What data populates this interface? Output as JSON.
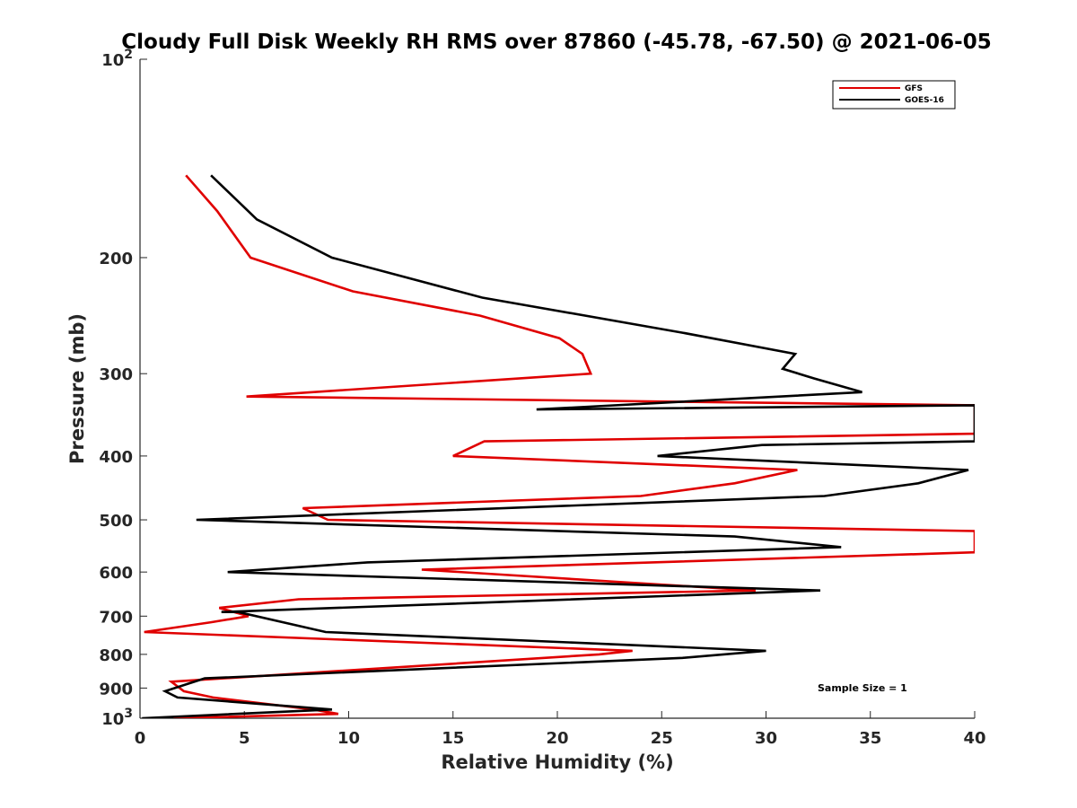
{
  "chart_data": {
    "type": "line",
    "title": "Cloudy Full Disk Weekly RH RMS over 87860 (-45.78, -67.50) @ 2021-06-05",
    "xlabel": "Relative Humidity (%)",
    "ylabel": "Pressure (mb)",
    "xlim": [
      0,
      40
    ],
    "ylim": [
      100,
      1000
    ],
    "y_scale": "log",
    "y_reversed": true,
    "x_ticks": [
      "0",
      "5",
      "10",
      "15",
      "20",
      "25",
      "30",
      "35",
      "40"
    ],
    "y_ticks": [
      {
        "value": 100,
        "base": "10",
        "exp": "2"
      },
      {
        "value": 200,
        "label": "200"
      },
      {
        "value": 300,
        "label": "300"
      },
      {
        "value": 400,
        "label": "400"
      },
      {
        "value": 500,
        "label": "500"
      },
      {
        "value": 600,
        "label": "600"
      },
      {
        "value": 700,
        "label": "700"
      },
      {
        "value": 800,
        "label": "800"
      },
      {
        "value": 900,
        "label": "900"
      },
      {
        "value": 1000,
        "base": "10",
        "exp": "3"
      }
    ],
    "grid": false,
    "legend_position": "top-right",
    "annotation": "Sample Size = 1",
    "series": [
      {
        "name": "GFS",
        "color": "#e00000",
        "points": [
          [
            2.2,
            150
          ],
          [
            3.7,
            170
          ],
          [
            5.3,
            200
          ],
          [
            10.2,
            225
          ],
          [
            16.3,
            245
          ],
          [
            20.1,
            265
          ],
          [
            21.2,
            280
          ],
          [
            21.6,
            300
          ],
          [
            5.1,
            325
          ],
          [
            40.0,
            335
          ],
          [
            40.0,
            370
          ],
          [
            16.5,
            380
          ],
          [
            15.0,
            400
          ],
          [
            31.5,
            420
          ],
          [
            28.5,
            440
          ],
          [
            24.0,
            460
          ],
          [
            7.8,
            480
          ],
          [
            9.0,
            500
          ],
          [
            40.0,
            520
          ],
          [
            40.0,
            560
          ],
          [
            13.5,
            595
          ],
          [
            29.5,
            640
          ],
          [
            7.6,
            660
          ],
          [
            3.8,
            680
          ],
          [
            5.2,
            700
          ],
          [
            3.4,
            715
          ],
          [
            0.2,
            740
          ],
          [
            23.6,
            790
          ],
          [
            22.0,
            800
          ],
          [
            1.5,
            880
          ],
          [
            2.1,
            910
          ],
          [
            3.5,
            930
          ],
          [
            8.3,
            970
          ],
          [
            9.5,
            985
          ],
          [
            1.6,
            1000
          ]
        ]
      },
      {
        "name": "GOES-16",
        "color": "#000000",
        "points": [
          [
            3.4,
            150
          ],
          [
            5.6,
            175
          ],
          [
            9.2,
            200
          ],
          [
            16.4,
            230
          ],
          [
            26.0,
            260
          ],
          [
            31.4,
            280
          ],
          [
            30.8,
            295
          ],
          [
            32.3,
            305
          ],
          [
            34.6,
            320
          ],
          [
            19.0,
            340
          ],
          [
            40.0,
            335
          ],
          [
            40.0,
            380
          ],
          [
            29.8,
            385
          ],
          [
            24.8,
            400
          ],
          [
            39.7,
            420
          ],
          [
            37.3,
            440
          ],
          [
            32.8,
            460
          ],
          [
            2.7,
            500
          ],
          [
            28.5,
            530
          ],
          [
            33.6,
            550
          ],
          [
            10.9,
            580
          ],
          [
            4.2,
            600
          ],
          [
            32.6,
            640
          ],
          [
            3.9,
            690
          ],
          [
            4.7,
            690
          ],
          [
            8.9,
            740
          ],
          [
            30.0,
            790
          ],
          [
            26.0,
            810
          ],
          [
            3.1,
            870
          ],
          [
            1.2,
            910
          ],
          [
            1.8,
            930
          ],
          [
            9.2,
            970
          ],
          [
            0.1,
            1000
          ]
        ]
      }
    ]
  }
}
